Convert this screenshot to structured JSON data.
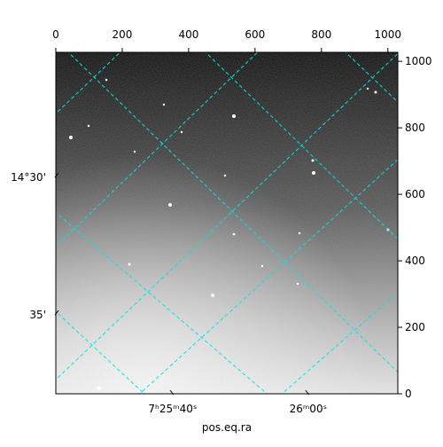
{
  "chart_data": {
    "type": "image",
    "x_axis_label": "pos.eq.ra",
    "xlim": [
      0,
      1030
    ],
    "xticks": [
      0,
      200,
      400,
      600,
      800,
      1000
    ],
    "ylim": [
      0,
      1027
    ],
    "yticks": [
      0,
      200,
      400,
      600,
      800,
      1000
    ],
    "world_xticks": [
      {
        "value": 352,
        "label": "7ʰ25ᵐ40ˢ"
      },
      {
        "value": 760,
        "label": "26ᵐ00ˢ"
      }
    ],
    "world_yticks": [
      {
        "value": 653,
        "label": "14°30'"
      },
      {
        "value": 240,
        "label": "35'"
      }
    ],
    "grid": true
  }
}
